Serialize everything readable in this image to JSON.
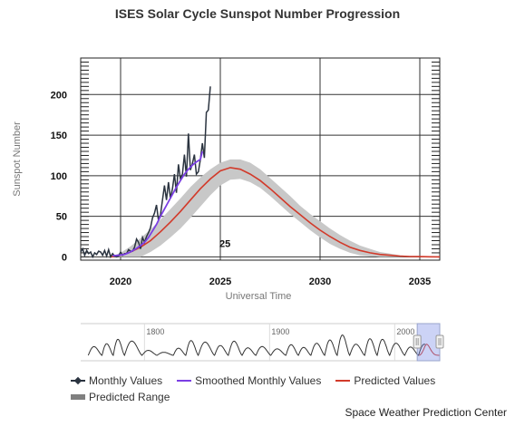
{
  "title": "ISES Solar Cycle Sunspot Number Progression",
  "credit": "Space Weather Prediction Center",
  "chart_data": {
    "type": "line",
    "xlabel": "Universal Time",
    "ylabel": "Sunspot Number",
    "xlim": [
      2018.0,
      2036.0
    ],
    "ylim": [
      -4,
      245
    ],
    "x_ticks": [
      2020,
      2025,
      2030,
      2035
    ],
    "y_ticks": [
      0,
      50,
      100,
      150,
      200
    ],
    "grid": true,
    "legend_position": "bottom-left",
    "colors": {
      "monthly": "#2b3440",
      "smoothed": "#7b3fe4",
      "predicted": "#d23a2a",
      "range": "#c8c8c8"
    },
    "annotation": {
      "text": "25",
      "x": 2025.5,
      "y": 12
    },
    "series": [
      {
        "name": "Monthly Values",
        "x": [
          2018.0,
          2018.1,
          2018.2,
          2018.3,
          2018.4,
          2018.5,
          2018.6,
          2018.7,
          2018.8,
          2018.9,
          2019.0,
          2019.1,
          2019.2,
          2019.3,
          2019.4,
          2019.5,
          2019.6,
          2019.7,
          2019.8,
          2019.9,
          2020.0,
          2020.1,
          2020.2,
          2020.3,
          2020.4,
          2020.5,
          2020.6,
          2020.7,
          2020.8,
          2020.9,
          2021.0,
          2021.1,
          2021.2,
          2021.3,
          2021.4,
          2021.5,
          2021.6,
          2021.7,
          2021.8,
          2021.9,
          2022.0,
          2022.1,
          2022.2,
          2022.3,
          2022.4,
          2022.5,
          2022.6,
          2022.7,
          2022.8,
          2022.9,
          2023.0,
          2023.1,
          2023.2,
          2023.3,
          2023.4,
          2023.5,
          2023.6,
          2023.7,
          2023.8,
          2023.9,
          2024.0,
          2024.1,
          2024.2,
          2024.3,
          2024.4,
          2024.5
        ],
        "y": [
          6,
          10,
          2,
          8,
          4,
          6,
          0,
          5,
          3,
          7,
          6,
          2,
          8,
          1,
          9,
          0,
          4,
          1,
          0,
          1,
          6,
          2,
          4,
          4,
          9,
          7,
          7,
          12,
          22,
          18,
          10,
          24,
          18,
          25,
          30,
          36,
          48,
          54,
          64,
          45,
          52,
          70,
          88,
          70,
          92,
          72,
          84,
          102,
          79,
          114,
          96,
          102,
          126,
          99,
          152,
          107,
          115,
          126,
          102,
          105,
          120,
          140,
          122,
          178,
          181,
          210
        ]
      },
      {
        "name": "Smoothed Monthly Values",
        "x": [
          2019.6,
          2019.8,
          2020.0,
          2020.2,
          2020.4,
          2020.6,
          2020.8,
          2021.0,
          2021.2,
          2021.4,
          2021.6,
          2021.8,
          2022.0,
          2022.2,
          2022.4,
          2022.6,
          2022.8,
          2023.0,
          2023.2,
          2023.4,
          2023.6,
          2023.8,
          2024.0,
          2024.1
        ],
        "y": [
          1.5,
          1.8,
          2.3,
          3.2,
          5,
          7.5,
          10.5,
          14,
          18,
          24,
          32,
          40,
          50,
          59,
          68,
          77,
          86,
          94,
          102,
          108,
          113,
          117,
          120,
          130
        ]
      },
      {
        "name": "Predicted Values",
        "x": [
          2019.5,
          2020.0,
          2020.5,
          2021.0,
          2021.5,
          2022.0,
          2022.5,
          2023.0,
          2023.5,
          2024.0,
          2024.5,
          2025.0,
          2025.5,
          2026.0,
          2026.5,
          2027.0,
          2027.5,
          2028.0,
          2028.5,
          2029.0,
          2029.5,
          2030.0,
          2030.5,
          2031.0,
          2031.5,
          2032.0,
          2032.5,
          2033.0,
          2033.5,
          2034.0,
          2034.5,
          2035.0,
          2035.5,
          2036.0
        ],
        "y": [
          0,
          2,
          6,
          12,
          20,
          31,
          43,
          56,
          70,
          84,
          96,
          106,
          110,
          108,
          102,
          94,
          84,
          73,
          62,
          52,
          42,
          33,
          25,
          18,
          12,
          8,
          5,
          3,
          2,
          1,
          0.5,
          0.3,
          0.1,
          0
        ]
      },
      {
        "name": "Predicted Range",
        "x": [
          2019.5,
          2020.0,
          2020.5,
          2021.0,
          2021.5,
          2022.0,
          2022.5,
          2023.0,
          2023.5,
          2024.0,
          2024.5,
          2025.0,
          2025.5,
          2026.0,
          2026.5,
          2027.0,
          2027.5,
          2028.0,
          2028.5,
          2029.0,
          2029.5,
          2030.0,
          2030.5,
          2031.0,
          2031.5,
          2032.0,
          2032.5,
          2033.0,
          2033.5,
          2034.0,
          2034.5,
          2035.0,
          2035.5,
          2036.0
        ],
        "low": [
          0,
          0,
          0,
          0,
          6,
          14,
          24,
          35,
          48,
          62,
          76,
          88,
          95,
          96,
          92,
          85,
          75,
          64,
          53,
          43,
          33,
          24,
          16,
          10,
          5,
          2,
          1,
          0,
          0,
          0,
          0,
          0,
          0,
          0
        ],
        "high": [
          0,
          5,
          13,
          23,
          34,
          46,
          59,
          72,
          86,
          98,
          108,
          116,
          120,
          120,
          116,
          108,
          97,
          86,
          75,
          63,
          53,
          44,
          35,
          27,
          20,
          14,
          10,
          6,
          4,
          2,
          1,
          0.5,
          0.2,
          0
        ]
      }
    ],
    "navigator": {
      "x_ticks": [
        1800,
        1900,
        2000
      ],
      "xlim": [
        1749,
        2036
      ],
      "selection": [
        2018,
        2036
      ],
      "cycle_minima": [
        1755,
        1766,
        1775,
        1784,
        1798,
        1810,
        1823,
        1833,
        1843,
        1856,
        1867,
        1878,
        1889,
        1901,
        1913,
        1923,
        1933,
        1944,
        1954,
        1964,
        1976,
        1986,
        1996,
        2008,
        2019
      ],
      "cycle_amplitudes": [
        86,
        115,
        158,
        141,
        49,
        30,
        71,
        146,
        131,
        97,
        140,
        74,
        87,
        64,
        105,
        78,
        119,
        152,
        201,
        110,
        164,
        158,
        120,
        82,
        110
      ]
    }
  },
  "legend": [
    {
      "label": "Monthly Values",
      "symbol": "line-dot",
      "color": "#2b3440"
    },
    {
      "label": "Smoothed Monthly Values",
      "symbol": "line",
      "color": "#7b3fe4"
    },
    {
      "label": "Predicted Values",
      "symbol": "line",
      "color": "#d23a2a"
    },
    {
      "label": "Predicted Range",
      "symbol": "bar",
      "color": "#808080"
    }
  ]
}
